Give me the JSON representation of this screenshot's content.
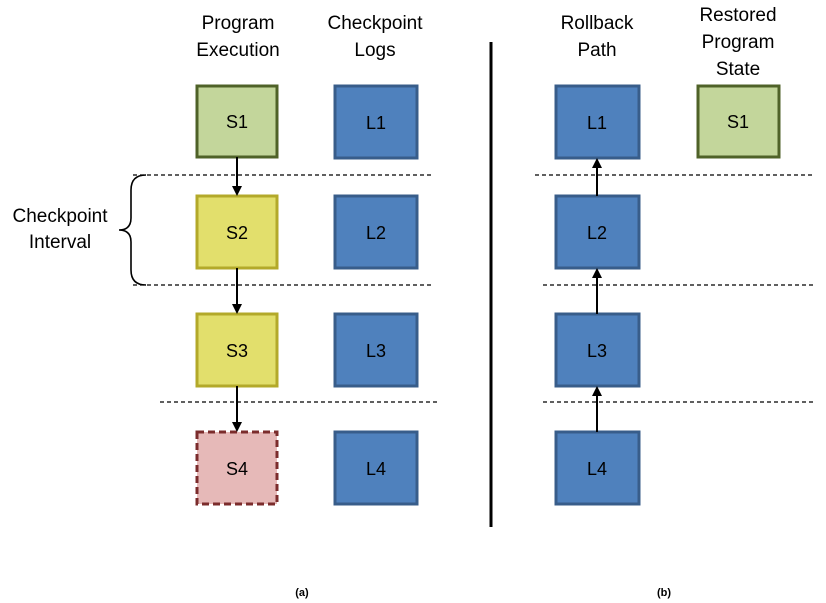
{
  "panel_a": {
    "caption": "(a)",
    "header_execution": [
      "Program",
      "Execution"
    ],
    "header_logs": [
      "Checkpoint",
      "Logs"
    ],
    "interval_label": [
      "Checkpoint",
      "Interval"
    ],
    "states": [
      "S1",
      "S2",
      "S3",
      "S4"
    ],
    "logs": [
      "L1",
      "L2",
      "L3",
      "L4"
    ]
  },
  "panel_b": {
    "caption": "(b)",
    "header_rollback": [
      "Rollback",
      "Path"
    ],
    "header_restored": [
      "Restored",
      "Program",
      "State"
    ],
    "logs": [
      "L1",
      "L2",
      "L3",
      "L4"
    ],
    "restored_state": "S1"
  },
  "colors": {
    "log_fill": "#4f81bd",
    "log_stroke": "#385d8a",
    "committed_fill": "#c3d69b",
    "committed_stroke": "#4f6228",
    "interval_fill": "#e2df6c",
    "interval_stroke": "#b3a92a",
    "failed_fill": "#e6b9b8",
    "failed_stroke": "#7b2c2c"
  }
}
